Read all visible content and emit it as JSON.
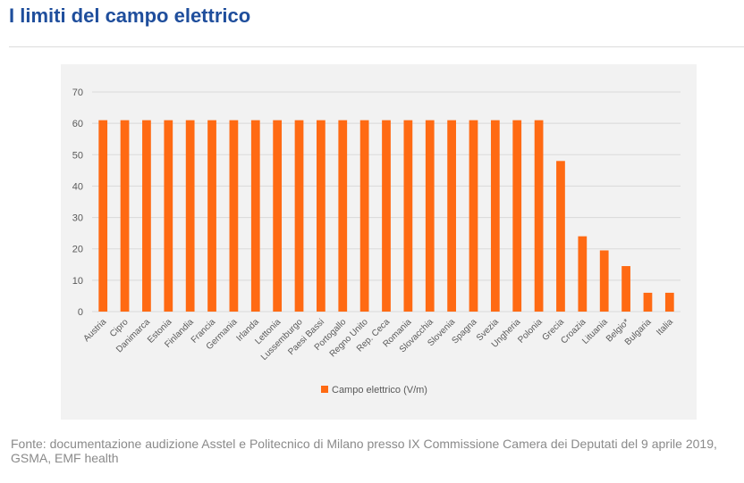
{
  "header": {
    "title": "I limiti del campo elettrico"
  },
  "source": {
    "text": "Fonte: documentazione audizione Asstel e Politecnico di Milano presso IX Commissione Camera dei Deputati del 9 aprile 2019, GSMA, EMF health"
  },
  "colors": {
    "bar": "#ff6a13",
    "title": "#1f4e9c"
  },
  "chart_data": {
    "type": "bar",
    "categories": [
      "Austria",
      "Cipro",
      "Danimarca",
      "Estonia",
      "Finlandia",
      "Francia",
      "Germania",
      "Irlanda",
      "Lettonia",
      "Lussemburgo",
      "Paesi Bassi",
      "Portogallo",
      "Regno Unito",
      "Rep. Ceca",
      "Romania",
      "Slovacchia",
      "Slovenia",
      "Spagna",
      "Svezia",
      "Ungheria",
      "Polonia",
      "Grecia",
      "Croazia",
      "Lituania",
      "Belgio*",
      "Bulgaria",
      "Italia"
    ],
    "series": [
      {
        "name": "Campo elettrico (V/m)",
        "values": [
          61,
          61,
          61,
          61,
          61,
          61,
          61,
          61,
          61,
          61,
          61,
          61,
          61,
          61,
          61,
          61,
          61,
          61,
          61,
          61,
          61,
          48,
          24,
          19.5,
          14.5,
          6,
          6
        ]
      }
    ],
    "yticks": [
      "0",
      "10",
      "20",
      "30",
      "40",
      "50",
      "60",
      "70"
    ],
    "ylim": [
      0,
      70
    ],
    "grid": true,
    "legend_position": "bottom"
  }
}
